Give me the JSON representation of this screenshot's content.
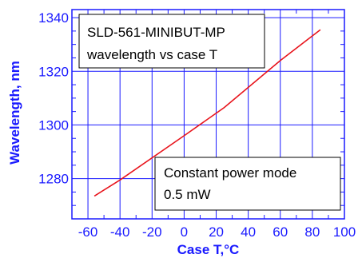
{
  "chart_data": {
    "type": "line",
    "title": "",
    "xlabel": "Case T,°C",
    "ylabel": "Wavelength, nm",
    "xlim": [
      -70,
      100
    ],
    "ylim": [
      1265,
      1343
    ],
    "xticks": [
      -60,
      -40,
      -20,
      0,
      20,
      40,
      60,
      80,
      100
    ],
    "yticks": [
      1280,
      1300,
      1320,
      1340
    ],
    "grid": true,
    "series": [
      {
        "x": [
          -56,
          -40,
          0,
          25,
          60,
          85
        ],
        "y": [
          1273.5,
          1279.5,
          1296,
          1306.5,
          1324,
          1335.5
        ]
      }
    ],
    "annotations": [
      {
        "lines": [
          "SLD-561-MINIBUT-MP",
          "wavelength vs case T"
        ],
        "position": "top-left"
      },
      {
        "lines": [
          "Constant power mode",
          "0.5 mW"
        ],
        "position": "bottom-right"
      }
    ],
    "colors": {
      "axis": "#1a1aff",
      "grid": "#1a1aff",
      "line": "#e8141c",
      "text": "#1a1aff"
    }
  }
}
